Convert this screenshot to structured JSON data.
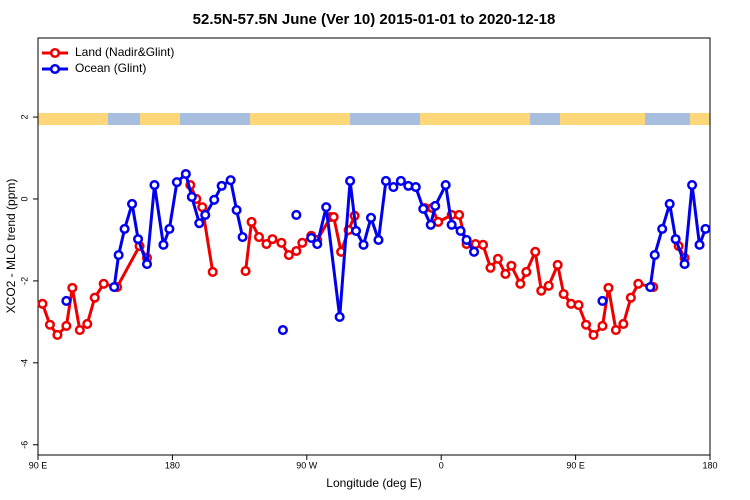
{
  "chart_data": {
    "type": "line",
    "title": "52.5N-57.5N June (Ver 10)   2015-01-01 to 2020-12-18",
    "xlabel": "Longitude (deg E)",
    "ylabel": "XCO2 - MLO trend (ppm)",
    "xlim": [
      90,
      540
    ],
    "ylim": [
      -6.25,
      3.93
    ],
    "xticks": [
      {
        "value": 90,
        "label": "90 E"
      },
      180,
      {
        "value": 270,
        "label": "90 W"
      },
      {
        "value": 360,
        "label": "0"
      },
      {
        "value": 450,
        "label": "90 E"
      },
      {
        "value": 540,
        "label": "180"
      }
    ],
    "yticks": [
      -6,
      -4,
      -2,
      0,
      2
    ],
    "legend": "upper left",
    "series": [
      {
        "name": "Land (Nadir&Glint)",
        "color": "#ee0000",
        "x": [
          93,
          98,
          103,
          109,
          113,
          118,
          123,
          128,
          134,
          143,
          158,
          163,
          null,
          192,
          196,
          200,
          207,
          null,
          229,
          233,
          238,
          243,
          247,
          253,
          258,
          263,
          267,
          273,
          277,
          286,
          288,
          293,
          298,
          302,
          null,
          349,
          354,
          358,
          367,
          372,
          377,
          383,
          388,
          393,
          398,
          403,
          407,
          413,
          417,
          423,
          427,
          432,
          438,
          442,
          447,
          452,
          457,
          462,
          468,
          472,
          477,
          482,
          487,
          492,
          502,
          null,
          519,
          523
        ],
        "values": [
          -2.56,
          -3.07,
          -3.32,
          -3.1,
          -2.17,
          -3.2,
          -3.05,
          -2.41,
          -2.07,
          -2.15,
          -1.15,
          -1.44,
          null,
          0.34,
          0,
          -0.2,
          -1.78,
          null,
          -1.76,
          -0.56,
          -0.93,
          -1.1,
          -0.98,
          -1.07,
          -1.37,
          -1.27,
          -1.07,
          -0.9,
          -1,
          -0.44,
          -0.44,
          -1.29,
          -0.76,
          -0.41,
          null,
          -0.22,
          -0.22,
          -0.56,
          -0.39,
          -0.39,
          -1.1,
          -1.1,
          -1.12,
          -1.68,
          -1.46,
          -1.83,
          -1.63,
          -2.07,
          -1.78,
          -1.29,
          -2.24,
          -2.12,
          -1.61,
          -2.32,
          -2.56,
          -2.59,
          -3.07,
          -3.32,
          -3.1,
          -2.17,
          -3.2,
          -3.05,
          -2.41,
          -2.07,
          -2.15,
          null,
          -1.15,
          -1.44
        ]
      },
      {
        "name": "Ocean (Glint)",
        "color": "#0000ee",
        "x": [
          109,
          null,
          141,
          144,
          148,
          153,
          157,
          163,
          168,
          174,
          178,
          183,
          189,
          193,
          198,
          202,
          208,
          213,
          219,
          223,
          227,
          null,
          254,
          null,
          263,
          null,
          273,
          277,
          283,
          292,
          299,
          303,
          308,
          313,
          318,
          323,
          328,
          333,
          338,
          343,
          348,
          353,
          356,
          363,
          367,
          373,
          377,
          382,
          null,
          468,
          null,
          500,
          503,
          508,
          513,
          517,
          523,
          528,
          533,
          537
        ],
        "values": [
          -2.49,
          null,
          -2.15,
          -1.37,
          -0.73,
          -0.12,
          -0.98,
          -1.59,
          0.34,
          -1.12,
          -0.73,
          0.41,
          0.61,
          0.05,
          -0.59,
          -0.39,
          -0.02,
          0.32,
          0.46,
          -0.27,
          -0.93,
          null,
          -3.2,
          null,
          -0.39,
          null,
          -0.95,
          -1.1,
          -0.2,
          -2.88,
          0.44,
          -0.78,
          -1.12,
          -0.46,
          -1,
          0.44,
          0.29,
          0.44,
          0.32,
          0.29,
          -0.24,
          -0.63,
          -0.17,
          0.34,
          -0.63,
          -0.78,
          -1,
          -1.29,
          null,
          -2.49,
          null,
          -2.15,
          -1.37,
          -0.73,
          -0.12,
          -0.98,
          -1.59,
          0.34,
          -1.12,
          -0.73
        ]
      }
    ]
  }
}
